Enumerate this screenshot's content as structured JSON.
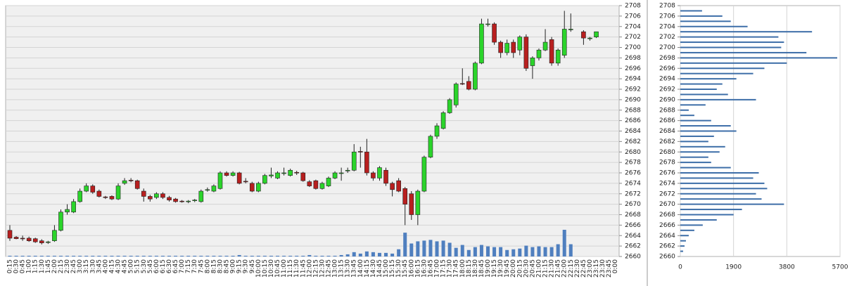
{
  "chart_data": [
    {
      "type": "candlestick",
      "categories": [
        "0:15",
        "0:30",
        "0:45",
        "1:00",
        "1:15",
        "1:30",
        "1:45",
        "2:00",
        "2:15",
        "2:30",
        "2:45",
        "3:00",
        "3:15",
        "3:30",
        "3:45",
        "4:00",
        "4:15",
        "4:30",
        "4:45",
        "5:00",
        "5:15",
        "5:30",
        "5:45",
        "6:00",
        "6:15",
        "6:30",
        "6:45",
        "7:00",
        "7:15",
        "7:30",
        "7:45",
        "8:00",
        "8:15",
        "8:30",
        "8:45",
        "9:00",
        "9:15",
        "9:30",
        "9:45",
        "10:00",
        "10:15",
        "10:30",
        "10:45",
        "11:00",
        "11:15",
        "11:30",
        "11:45",
        "12:00",
        "12:15",
        "12:30",
        "12:45",
        "13:00",
        "13:15",
        "13:30",
        "13:45",
        "14:00",
        "14:15",
        "14:30",
        "14:45",
        "15:00",
        "15:15",
        "15:30",
        "15:45",
        "16:00",
        "16:15",
        "16:30",
        "16:45",
        "17:00",
        "17:15",
        "17:30",
        "17:45",
        "18:00",
        "18:15",
        "18:30",
        "18:45",
        "19:00",
        "19:15",
        "19:30",
        "19:45",
        "20:00",
        "20:15",
        "20:30",
        "20:45",
        "21:00",
        "21:15",
        "21:30",
        "21:45",
        "22:00",
        "22:15",
        "22:30",
        "22:45",
        "23:00",
        "23:15",
        "23:30",
        "23:45",
        "0:00"
      ],
      "open": [
        2665,
        2663.7,
        2663.5,
        2663.5,
        2663.4,
        2663,
        2662.7,
        2663,
        2665,
        2668.5,
        2668.5,
        2670.5,
        2672.5,
        2673.5,
        2672.5,
        2671.4,
        2671.5,
        2671,
        2674,
        2674.6,
        2674.5,
        2672.5,
        2671.5,
        2671.3,
        2672,
        2671.3,
        2671,
        2670.6,
        2670.5,
        2670.7,
        2670.5,
        2672.7,
        2672.5,
        2673,
        2676,
        2675.5,
        2676,
        2674.4,
        2674,
        2672.5,
        2674,
        2675.4,
        2675,
        2675.9,
        2675.5,
        2676.1,
        2676,
        2674.3,
        2674.5,
        2673,
        2673.5,
        2675,
        2675.9,
        2676.4,
        2676.5,
        2680.1,
        2680,
        2676,
        2675,
        2676.5,
        2674,
        2674.5,
        2673,
        2672,
        2668,
        2672.5,
        2679,
        2683,
        2684.5,
        2687.5,
        2689,
        2693.1,
        2693.5,
        2692,
        2697,
        2704.4,
        2704.5,
        2701,
        2699,
        2701,
        2699.5,
        2702,
        2696.5,
        2698,
        2699.5,
        2701.5,
        2697,
        2698.5,
        2703.4,
        null,
        2703,
        2701.7,
        2702,
        null,
        null,
        null
      ],
      "high": [
        2666,
        2663.9,
        2664,
        2663.8,
        2663.6,
        2663.3,
        2663,
        2666,
        2669,
        2670,
        2671,
        2673,
        2674,
        2673.8,
        2672.8,
        2671.6,
        2671.7,
        2674,
        2675,
        2675,
        2674.7,
        2673,
        2671.8,
        2672.3,
        2672.3,
        2671.6,
        2671.2,
        2670.8,
        2670.8,
        2671,
        2672.8,
        2673.2,
        2673.8,
        2676.3,
        2676.3,
        2676.3,
        2676.2,
        2675,
        2674.3,
        2674.3,
        2675.8,
        2677,
        2676.3,
        2677,
        2676.8,
        2676.4,
        2676.2,
        2674.6,
        2674.7,
        2674.3,
        2675.3,
        2676.3,
        2677,
        2677,
        2681.5,
        2681,
        2682.5,
        2676.3,
        2677.3,
        2677,
        2674.3,
        2675,
        2673.3,
        2672.5,
        2672.8,
        2679.3,
        2683.3,
        2685.5,
        2687.8,
        2690.3,
        2693.3,
        2696,
        2694.5,
        2697.3,
        2705.5,
        2705.5,
        2704.8,
        2701.3,
        2701.5,
        2701.5,
        2702.3,
        2702.5,
        2698.3,
        2699.8,
        2703.5,
        2702,
        2699.8,
        2707,
        2706.5,
        null,
        2703.3,
        2702,
        2703,
        null,
        null,
        null
      ],
      "low": [
        2663,
        2663.3,
        2663,
        2662.8,
        2662.6,
        2662.3,
        2662.4,
        2662.8,
        2664.8,
        2668,
        2668.3,
        2670.3,
        2672.3,
        2672,
        2671.3,
        2671,
        2670.8,
        2670.8,
        2673.7,
        2674.2,
        2672.8,
        2670.5,
        2670.5,
        2671,
        2671,
        2670.5,
        2670.3,
        2670.3,
        2670.2,
        2670.4,
        2670.3,
        2672.4,
        2672.3,
        2672.8,
        2675.3,
        2675.3,
        2673.8,
        2674,
        2672.3,
        2672.3,
        2673.8,
        2675,
        2674.8,
        2675.5,
        2675.3,
        2675.6,
        2674.3,
        2673.3,
        2672.8,
        2672.8,
        2673.3,
        2674.8,
        2674.5,
        2676,
        2676.3,
        2677,
        2675.5,
        2674.5,
        2674.5,
        2673.5,
        2671.5,
        2672.3,
        2666,
        2667,
        2666,
        2672.3,
        2678.8,
        2682.5,
        2684.3,
        2687.3,
        2688.5,
        2692.8,
        2691.8,
        2691.8,
        2696.8,
        2704,
        2700.5,
        2698,
        2698.5,
        2698,
        2698.5,
        2695.5,
        2694,
        2697.5,
        2699.3,
        2696.5,
        2696.5,
        2698,
        2703,
        null,
        2700.5,
        2701.3,
        2701.8,
        null,
        null,
        null
      ],
      "close": [
        2663.5,
        2663.4,
        2663.4,
        2663,
        2662.8,
        2662.6,
        2662.8,
        2665,
        2668.5,
        2669,
        2670.5,
        2672.5,
        2673.5,
        2672.3,
        2671.5,
        2671.3,
        2671,
        2673.5,
        2674.5,
        2674.5,
        2673,
        2671.5,
        2671,
        2672,
        2671.3,
        2670.8,
        2670.5,
        2670.5,
        2670.6,
        2670.8,
        2672.5,
        2672.8,
        2673.5,
        2676,
        2675.5,
        2676,
        2674,
        2674.3,
        2672.5,
        2674,
        2675.5,
        2675.6,
        2676,
        2676,
        2676.5,
        2676,
        2674.5,
        2673.5,
        2673,
        2674,
        2675,
        2676,
        2676,
        2676.5,
        2680,
        2680,
        2676,
        2675,
        2677,
        2674,
        2672.8,
        2672.5,
        2670,
        2668,
        2672.5,
        2679,
        2683,
        2685,
        2687.5,
        2690,
        2693,
        2693,
        2692,
        2697,
        2704.5,
        2704.5,
        2701,
        2699,
        2700.8,
        2699,
        2702,
        2696,
        2698,
        2699.5,
        2701,
        2697,
        2699.5,
        2703.5,
        2703.5,
        null,
        2701.8,
        2701.8,
        2703,
        null,
        null,
        null
      ],
      "volume": [
        1,
        1,
        1,
        1,
        1,
        1,
        1,
        1,
        1,
        1,
        1,
        1,
        1,
        1,
        1,
        1,
        1,
        1,
        1,
        1,
        1,
        1,
        1,
        1,
        1,
        1,
        1,
        1,
        1,
        1,
        1,
        1,
        1,
        1,
        1,
        1,
        2,
        1,
        1,
        1,
        1,
        1,
        1,
        1,
        1,
        1,
        1,
        2,
        1,
        1,
        1,
        1,
        2,
        3,
        6,
        4,
        7,
        6,
        5,
        5,
        4,
        10,
        33,
        18,
        21,
        22,
        23,
        21,
        22,
        19,
        12,
        16,
        9,
        13,
        16,
        14,
        13,
        13,
        9,
        10,
        11,
        15,
        13,
        14,
        13,
        13,
        17,
        37,
        17,
        null,
        null,
        null,
        null,
        null,
        null,
        null
      ],
      "up_color": "#2bd42b",
      "down_color": "#b81f1f",
      "volume_color": "#4f7fbf",
      "ylim": [
        2660,
        2708
      ],
      "yticks": [
        2660,
        2662,
        2664,
        2666,
        2668,
        2670,
        2672,
        2674,
        2676,
        2678,
        2680,
        2682,
        2684,
        2686,
        2688,
        2690,
        2692,
        2694,
        2696,
        2698,
        2700,
        2702,
        2704,
        2706,
        2708
      ],
      "grid": true
    },
    {
      "type": "profile",
      "y": [
        2707,
        2706,
        2705,
        2704,
        2703,
        2702,
        2701,
        2700,
        2699,
        2698,
        2697,
        2696,
        2695,
        2694,
        2693,
        2692,
        2691,
        2690,
        2689,
        2688,
        2687,
        2686,
        2685,
        2684,
        2683,
        2682,
        2681,
        2680,
        2679,
        2678,
        2677,
        2676,
        2675,
        2674,
        2673,
        2672,
        2671,
        2670,
        2669,
        2668,
        2667,
        2666,
        2665,
        2664,
        2663,
        2662,
        2661
      ],
      "values": [
        775,
        1500,
        1800,
        2400,
        4700,
        3500,
        3700,
        3600,
        4500,
        5600,
        3800,
        3000,
        2600,
        2000,
        1500,
        1300,
        1700,
        2700,
        900,
        300,
        500,
        1100,
        1800,
        2000,
        1200,
        1000,
        1600,
        1400,
        1000,
        1100,
        1800,
        2800,
        2600,
        3000,
        3100,
        2700,
        2900,
        3700,
        2200,
        1900,
        1300,
        800,
        500,
        300,
        200,
        150,
        100
      ],
      "color": "#3d6ea8",
      "xlim": [
        0,
        5700
      ],
      "xticks": [
        0,
        1900,
        3800,
        5700
      ],
      "ylim": [
        2660,
        2708
      ],
      "yticks": [
        2660,
        2662,
        2664,
        2666,
        2668,
        2670,
        2672,
        2674,
        2676,
        2678,
        2680,
        2682,
        2684,
        2686,
        2688,
        2690,
        2692,
        2694,
        2696,
        2698,
        2700,
        2702,
        2704,
        2706,
        2708
      ],
      "grid": true
    }
  ]
}
